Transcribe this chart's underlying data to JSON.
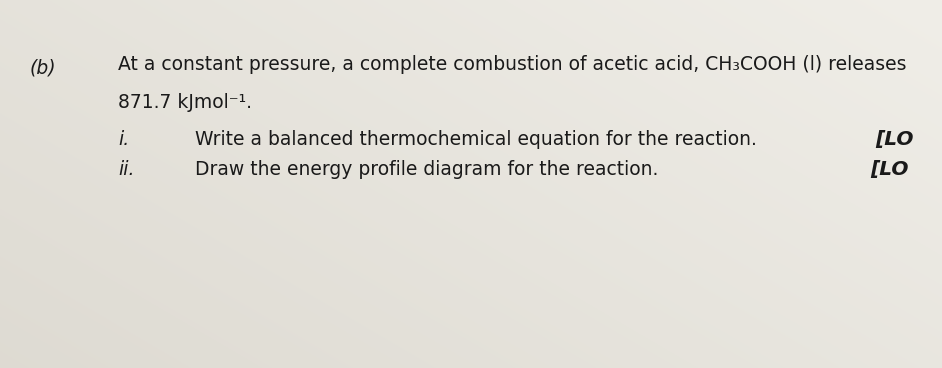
{
  "background_color": "#c8c3b8",
  "background_light": "#e8e5de",
  "label_b": "(b)",
  "line1": "At a constant pressure, a complete combustion of acetic acid, CH₃COOH (l) releases",
  "line2": "871.7 kJmol⁻¹.",
  "roman_i": "i.",
  "text_i": "Write a balanced thermochemical equation for the reaction.",
  "tag_i": "[LO",
  "roman_ii": "ii.",
  "text_ii": "Draw the energy profile diagram for the reaction.",
  "tag_ii": "[LO",
  "fontsize_main": 13.5,
  "text_color": "#1a1a1a",
  "font_family": "DejaVu Sans"
}
